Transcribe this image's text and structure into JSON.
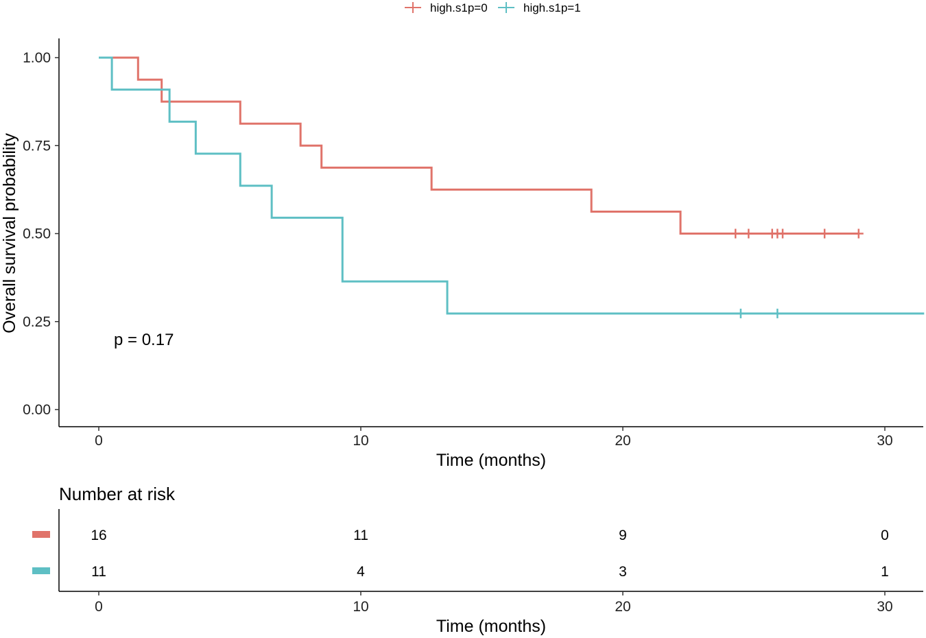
{
  "chart_data": [
    {
      "type": "line",
      "subtype": "kaplan-meier-step",
      "legend": {
        "position": "top",
        "entries": [
          "high.s1p=0",
          "high.s1p=1"
        ]
      },
      "xlabel": "Time (months)",
      "ylabel": "Overall survival probability",
      "xlim": [
        -1.5,
        31.5
      ],
      "ylim": [
        -0.05,
        1.05
      ],
      "x_ticks": [
        "0",
        "10",
        "20",
        "30"
      ],
      "y_ticks": [
        "0.00",
        "0.25",
        "0.50",
        "0.75",
        "1.00"
      ],
      "annotation": "p = 0.17",
      "grid": false,
      "series": [
        {
          "name": "high.s1p=0",
          "color": "#E0736A",
          "x": [
            0,
            1.5,
            2.4,
            5.4,
            7.7,
            8.5,
            12.7,
            18.8,
            22.2,
            29.0
          ],
          "y": [
            1.0,
            0.9375,
            0.875,
            0.8125,
            0.75,
            0.6875,
            0.625,
            0.5625,
            0.5,
            0.5
          ],
          "censored": [
            {
              "x": 24.3,
              "y": 0.5
            },
            {
              "x": 24.8,
              "y": 0.5
            },
            {
              "x": 25.7,
              "y": 0.5
            },
            {
              "x": 25.9,
              "y": 0.5
            },
            {
              "x": 26.1,
              "y": 0.5
            },
            {
              "x": 27.7,
              "y": 0.5
            },
            {
              "x": 29.0,
              "y": 0.5
            }
          ]
        },
        {
          "name": "high.s1p=1",
          "color": "#5EBFC4",
          "x": [
            0,
            0.5,
            2.7,
            3.7,
            5.4,
            6.6,
            9.3,
            13.3,
            31.5
          ],
          "y": [
            1.0,
            0.909,
            0.818,
            0.727,
            0.636,
            0.545,
            0.364,
            0.273,
            0.273
          ],
          "censored": [
            {
              "x": 24.5,
              "y": 0.273
            },
            {
              "x": 25.9,
              "y": 0.273
            }
          ]
        }
      ]
    },
    {
      "type": "table",
      "title": "Number at risk",
      "xlabel": "Time (months)",
      "x_ticks": [
        "0",
        "10",
        "20",
        "30"
      ],
      "rows": [
        {
          "name": "high.s1p=0",
          "color": "#E0736A",
          "values": [
            "16",
            "11",
            "9",
            "0"
          ]
        },
        {
          "name": "high.s1p=1",
          "color": "#5EBFC4",
          "values": [
            "11",
            "4",
            "3",
            "1"
          ]
        }
      ]
    }
  ]
}
